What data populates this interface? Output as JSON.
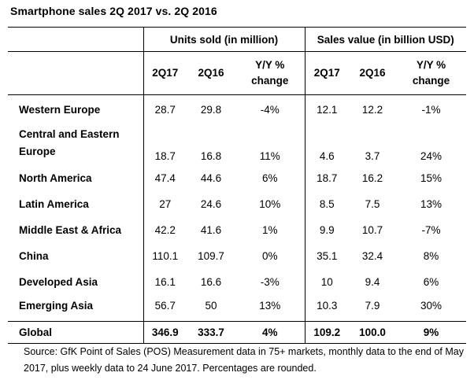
{
  "title": "Smartphone sales 2Q 2017 vs. 2Q 2016",
  "groups": {
    "units": "Units sold (in million)",
    "value": "Sales value (in billion USD)"
  },
  "columns": {
    "q17": "2Q17",
    "q16": "2Q16",
    "yoy_line1": "Y/Y %",
    "yoy_line2": "change"
  },
  "rows": [
    {
      "region": "Western Europe",
      "u17": "28.7",
      "u16": "29.8",
      "uyoy": "-4%",
      "v17": "12.1",
      "v16": "12.2",
      "vyoy": "-1%"
    },
    {
      "region_line1": "Central and Eastern",
      "region_line2": "Europe",
      "u17": "18.7",
      "u16": "16.8",
      "uyoy": "11%",
      "v17": "4.6",
      "v16": "3.7",
      "vyoy": "24%"
    },
    {
      "region": "North America",
      "u17": "47.4",
      "u16": "44.6",
      "uyoy": "6%",
      "v17": "18.7",
      "v16": "16.2",
      "vyoy": "15%"
    },
    {
      "region": "Latin America",
      "u17": "27",
      "u16": "24.6",
      "uyoy": "10%",
      "v17": "8.5",
      "v16": "7.5",
      "vyoy": "13%"
    },
    {
      "region": "Middle East & Africa",
      "u17": "42.2",
      "u16": "41.6",
      "uyoy": "1%",
      "v17": "9.9",
      "v16": "10.7",
      "vyoy": "-7%"
    },
    {
      "region": "China",
      "u17": "110.1",
      "u16": "109.7",
      "uyoy": "0%",
      "v17": "35.1",
      "v16": "32.4",
      "vyoy": "8%"
    },
    {
      "region": "Developed Asia",
      "u17": "16.1",
      "u16": "16.6",
      "uyoy": "-3%",
      "v17": "10",
      "v16": "9.4",
      "vyoy": "6%"
    },
    {
      "region": "Emerging Asia",
      "u17": "56.7",
      "u16": "50",
      "uyoy": "13%",
      "v17": "10.3",
      "v16": "7.9",
      "vyoy": "30%"
    }
  ],
  "total": {
    "region": "Global",
    "u17": "346.9",
    "u16": "333.7",
    "uyoy": "4%",
    "v17": "109.2",
    "v16": "100.0",
    "vyoy": "9%"
  },
  "source_line1": "Source: GfK Point of Sales (POS) Measurement data in 75+ markets, monthly data to the end of May",
  "source_line2": "2017, plus weekly data to 24 June 2017. Percentages are rounded."
}
